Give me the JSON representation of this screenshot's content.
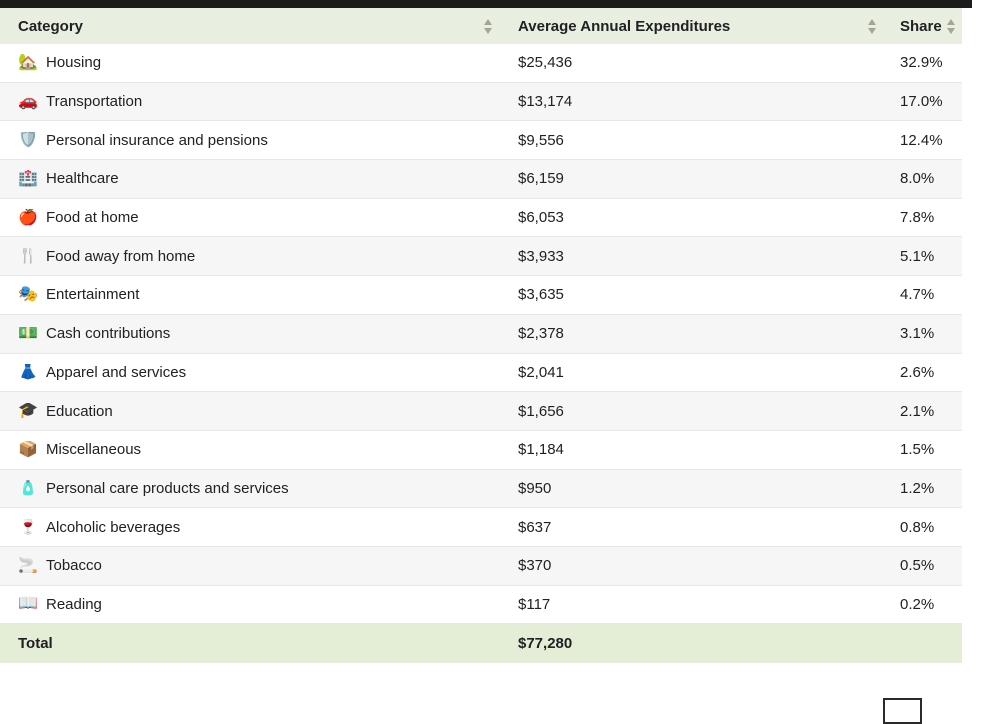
{
  "topbar": {
    "color": "#1c1c1c"
  },
  "table": {
    "columns": [
      {
        "label": "Category",
        "sort_icon": "sort-arrows-icon"
      },
      {
        "label": "Average Annual Expenditures",
        "sort_icon": "sort-arrows-icon"
      },
      {
        "label": "Share",
        "sort_icon": "sort-arrows-icon"
      }
    ],
    "rows": [
      {
        "icon": "🏡",
        "icon_name": "housing-icon",
        "category": "Housing",
        "expenditure": "$25,436",
        "share": "32.9%"
      },
      {
        "icon": "🚗",
        "icon_name": "car-icon",
        "category": "Transportation",
        "expenditure": "$13,174",
        "share": "17.0%"
      },
      {
        "icon": "🛡️",
        "icon_name": "shield-icon",
        "category": "Personal insurance and pensions",
        "expenditure": "$9,556",
        "share": "12.4%"
      },
      {
        "icon": "🏥",
        "icon_name": "hospital-icon",
        "category": "Healthcare",
        "expenditure": "$6,159",
        "share": "8.0%"
      },
      {
        "icon": "🍎",
        "icon_name": "apple-icon",
        "category": "Food at home",
        "expenditure": "$6,053",
        "share": "7.8%"
      },
      {
        "icon": "🍴",
        "icon_name": "fork-knife-icon",
        "category": "Food away from home",
        "expenditure": "$3,933",
        "share": "5.1%"
      },
      {
        "icon": "🎭",
        "icon_name": "theater-masks-icon",
        "category": "Entertainment",
        "expenditure": "$3,635",
        "share": "4.7%"
      },
      {
        "icon": "💵",
        "icon_name": "dollar-bill-icon",
        "category": "Cash contributions",
        "expenditure": "$2,378",
        "share": "3.1%"
      },
      {
        "icon": "👗",
        "icon_name": "dress-icon",
        "category": "Apparel and services",
        "expenditure": "$2,041",
        "share": "2.6%"
      },
      {
        "icon": "🎓",
        "icon_name": "graduation-cap-icon",
        "category": "Education",
        "expenditure": "$1,656",
        "share": "2.1%"
      },
      {
        "icon": "📦",
        "icon_name": "package-icon",
        "category": "Miscellaneous",
        "expenditure": "$1,184",
        "share": "1.5%"
      },
      {
        "icon": "🧴",
        "icon_name": "lotion-bottle-icon",
        "category": "Personal care products and services",
        "expenditure": "$950",
        "share": "1.2%"
      },
      {
        "icon": "🍷",
        "icon_name": "wine-glass-icon",
        "category": "Alcoholic beverages",
        "expenditure": "$637",
        "share": "0.8%"
      },
      {
        "icon": "🚬",
        "icon_name": "cigarette-icon",
        "category": "Tobacco",
        "expenditure": "$370",
        "share": "0.5%"
      },
      {
        "icon": "📖",
        "icon_name": "open-book-icon",
        "category": "Reading",
        "expenditure": "$117",
        "share": "0.2%"
      }
    ],
    "total": {
      "label": "Total",
      "expenditure": "$77,280",
      "share": ""
    }
  },
  "colors": {
    "header_bg": "#e9efe0",
    "total_row_bg": "#e4eed7",
    "alt_row_bg": "#f6f6f6",
    "top_bar": "#1c1c1c",
    "sort_arrow": "#a6a698",
    "text": "#202124"
  }
}
